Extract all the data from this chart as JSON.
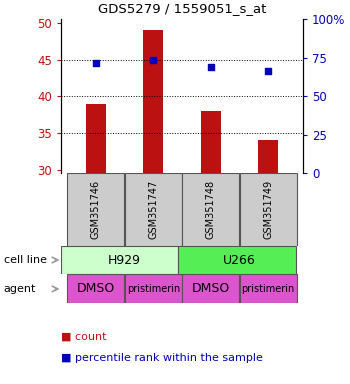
{
  "title": "GDS5279 / 1559051_s_at",
  "samples": [
    "GSM351746",
    "GSM351747",
    "GSM351748",
    "GSM351749"
  ],
  "bar_values": [
    39.0,
    49.0,
    38.0,
    34.0
  ],
  "bar_bottom": 29.5,
  "bar_color": "#bb1111",
  "dot_values": [
    44.5,
    45.0,
    44.0,
    43.5
  ],
  "dot_color": "#0000bb",
  "left_ylim": [
    29.5,
    50.5
  ],
  "left_yticks": [
    30,
    35,
    40,
    45,
    50
  ],
  "right_ylim": [
    0,
    100
  ],
  "right_yticks": [
    0,
    25,
    50,
    75,
    100
  ],
  "right_yticklabels": [
    "0",
    "25",
    "50",
    "75",
    "100%"
  ],
  "hlines": [
    35,
    40,
    45
  ],
  "cell_line_labels": [
    "H929",
    "U266"
  ],
  "cell_line_colors": [
    "#ccffcc",
    "#55ee55"
  ],
  "agent_labels": [
    "DMSO",
    "pristimerin",
    "DMSO",
    "pristimerin"
  ],
  "agent_color": "#dd55cc",
  "agent_font_sizes": [
    9,
    7,
    9,
    7
  ],
  "sample_box_color": "#cccccc",
  "legend_count_color": "#bb1111",
  "legend_pct_color": "#0000bb",
  "left_tick_color": "#bb1111",
  "right_tick_color": "#0000bb",
  "cell_line_label": "cell line",
  "agent_label": "agent",
  "arrow_color": "#999999",
  "bar_width": 0.35
}
